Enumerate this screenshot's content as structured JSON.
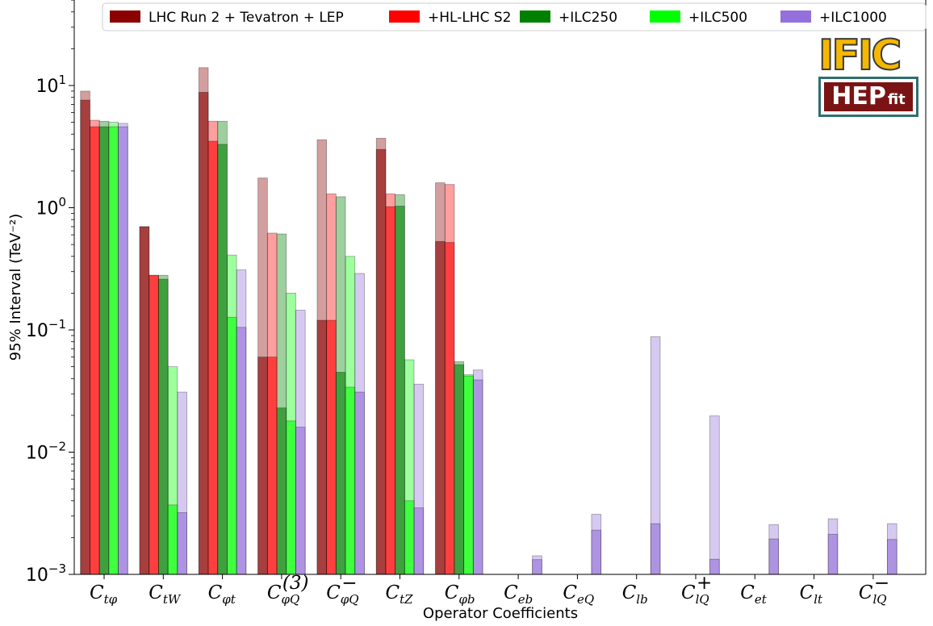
{
  "chart_data": {
    "type": "bar",
    "yscale": "log",
    "ylim": [
      0.001,
      50
    ],
    "ylabel": "95% Interval (TeV⁻²)",
    "xlabel": "Operator Coefficients",
    "yticks": [
      {
        "value": 0.001,
        "base": "10",
        "exp": "−3"
      },
      {
        "value": 0.01,
        "base": "10",
        "exp": "−2"
      },
      {
        "value": 0.1,
        "base": "10",
        "exp": "−1"
      },
      {
        "value": 1,
        "base": "10",
        "exp": "0"
      },
      {
        "value": 10,
        "base": "10",
        "exp": "1"
      }
    ],
    "categories": [
      {
        "main": "C",
        "sub": "tφ",
        "sup": ""
      },
      {
        "main": "C",
        "sub": "tW",
        "sup": ""
      },
      {
        "main": "C",
        "sub": "φt",
        "sup": ""
      },
      {
        "main": "C",
        "sub": "φQ",
        "sup": "(3)"
      },
      {
        "main": "C",
        "sub": "φQ",
        "sup": "−"
      },
      {
        "main": "C",
        "sub": "tZ",
        "sup": ""
      },
      {
        "main": "C",
        "sub": "φb",
        "sup": ""
      },
      {
        "main": "C",
        "sub": "eb",
        "sup": ""
      },
      {
        "main": "C",
        "sub": "eQ",
        "sup": ""
      },
      {
        "main": "C",
        "sub": "lb",
        "sup": ""
      },
      {
        "main": "C",
        "sub": "lQ",
        "sup": "+"
      },
      {
        "main": "C",
        "sub": "et",
        "sup": ""
      },
      {
        "main": "C",
        "sub": "lt",
        "sup": ""
      },
      {
        "main": "C",
        "sub": "lQ",
        "sup": "−"
      }
    ],
    "legend_position": "top",
    "series": [
      {
        "name": "LHC Run 2 + Tevatron + LEP",
        "color": "#8b0000",
        "global": [
          9.0,
          0.7,
          14.0,
          1.75,
          3.6,
          3.7,
          1.6,
          null,
          null,
          null,
          null,
          null,
          null,
          null
        ],
        "individual": [
          7.6,
          0.7,
          8.8,
          0.06,
          0.12,
          3.0,
          0.53,
          null,
          null,
          null,
          null,
          null,
          null,
          null
        ]
      },
      {
        "name": "+HL-LHC S2",
        "color": "#ff0000",
        "global": [
          5.2,
          0.28,
          5.1,
          0.62,
          1.3,
          1.3,
          1.55,
          null,
          null,
          null,
          null,
          null,
          null,
          null
        ],
        "individual": [
          4.6,
          0.28,
          3.5,
          0.06,
          0.12,
          1.02,
          0.52,
          null,
          null,
          null,
          null,
          null,
          null,
          null
        ]
      },
      {
        "name": "+ILC250",
        "color": "#008000",
        "global": [
          5.1,
          0.28,
          5.1,
          0.61,
          1.23,
          1.28,
          0.055,
          null,
          null,
          null,
          null,
          null,
          null,
          null
        ],
        "individual": [
          4.6,
          0.26,
          3.3,
          0.023,
          0.045,
          1.03,
          0.052,
          null,
          null,
          null,
          null,
          null,
          null,
          null
        ]
      },
      {
        "name": "+ILC500",
        "color": "#00ff00",
        "global": [
          5.0,
          0.05,
          0.41,
          0.2,
          0.4,
          0.057,
          0.043,
          null,
          null,
          null,
          null,
          null,
          null,
          null
        ],
        "individual": [
          4.6,
          0.0037,
          0.127,
          0.018,
          0.034,
          0.004,
          0.042,
          null,
          null,
          null,
          null,
          null,
          null,
          null
        ]
      },
      {
        "name": "+ILC1000",
        "color": "#9370db",
        "global": [
          4.9,
          0.031,
          0.31,
          0.145,
          0.29,
          0.036,
          0.047,
          0.00142,
          0.0031,
          0.088,
          0.0198,
          0.00255,
          0.00285,
          0.0026
        ],
        "individual": [
          4.6,
          0.0032,
          0.105,
          0.016,
          0.031,
          0.0035,
          0.039,
          0.00132,
          0.0023,
          0.0026,
          0.00133,
          0.00195,
          0.00213,
          0.00193
        ]
      }
    ]
  },
  "logos": {
    "ifit_text": "IFIC",
    "hepfit_main": "HEP",
    "hepfit_sub": "fit"
  }
}
